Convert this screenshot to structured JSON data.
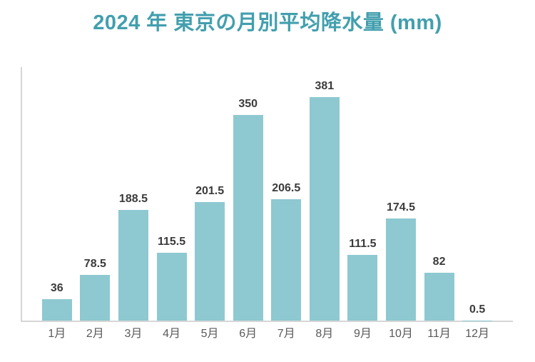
{
  "page": {
    "background_color": "#ffffff"
  },
  "header": {
    "title": "2024 年 東京の月別平均降水量 (mm)",
    "title_color": "#429fae"
  },
  "chart_data": {
    "type": "bar",
    "title": "2024 年 東京の月別平均降水量 (mm)",
    "categories": [
      "1月",
      "2月",
      "3月",
      "4月",
      "5月",
      "6月",
      "7月",
      "8月",
      "9月",
      "10月",
      "11月",
      "12月"
    ],
    "values": [
      36,
      78.5,
      188.5,
      115.5,
      201.5,
      350,
      206.5,
      381,
      111.5,
      174.5,
      82,
      0.5
    ],
    "data_labels": [
      "36",
      "78.5",
      "188.5",
      "115.5",
      "201.5",
      "350",
      "206.5",
      "381",
      "111.5",
      "174.5",
      "82",
      "0.5"
    ],
    "xlabel": "",
    "ylabel": "",
    "ylim": [
      0,
      435
    ],
    "grid": false,
    "legend": "none",
    "data_labels_shown": true,
    "bar_color": "#8ec9d1",
    "value_label_color": "#3b3b3b",
    "tick_label_color": "#595959",
    "axis_line_color": "#d6d6d6"
  }
}
